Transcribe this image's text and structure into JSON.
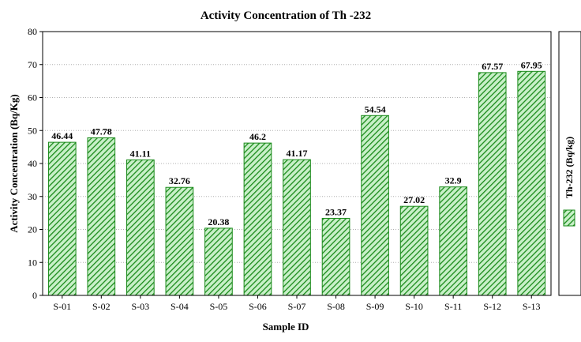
{
  "chart_data": {
    "type": "bar",
    "title": "Activity Concentration of Th -232",
    "xlabel": "Sample ID",
    "ylabel": "Activity Concentration (Bq/Kg)",
    "categories": [
      "S-01",
      "S-02",
      "S-03",
      "S-04",
      "S-05",
      "S-06",
      "S-07",
      "S-08",
      "S-09",
      "S-10",
      "S-11",
      "S-12",
      "S-13"
    ],
    "series": [
      {
        "name": "Th-232 (Bq/kg)",
        "values": [
          46.44,
          47.78,
          41.11,
          32.76,
          20.38,
          46.2,
          41.17,
          23.37,
          54.54,
          27.02,
          32.9,
          67.57,
          67.95
        ],
        "data_labels": [
          "46.44",
          "47.78",
          "41.11",
          "32.76",
          "20.38",
          "46.2",
          "41.17",
          "23.37",
          "54.54",
          "27.02",
          "32.9",
          "67.57",
          "67.95"
        ]
      }
    ],
    "ylim": [
      0,
      80
    ],
    "yticks": [
      0,
      10,
      20,
      30,
      40,
      50,
      60,
      70,
      80
    ],
    "grid": true,
    "legend_position": "right",
    "bar_color": "#1a8a1a",
    "bar_hatch_light": "#c8f0c8",
    "grid_color": "#b0b0b0"
  }
}
